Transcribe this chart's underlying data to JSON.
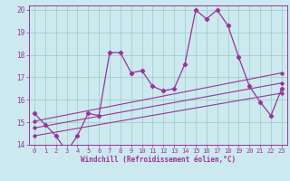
{
  "xlabel": "Windchill (Refroidissement éolien,°C)",
  "xlim": [
    -0.5,
    23.5
  ],
  "ylim": [
    14,
    20.2
  ],
  "yticks": [
    14,
    15,
    16,
    17,
    18,
    19,
    20
  ],
  "xticks": [
    0,
    1,
    2,
    3,
    4,
    5,
    6,
    7,
    8,
    9,
    10,
    11,
    12,
    13,
    14,
    15,
    16,
    17,
    18,
    19,
    20,
    21,
    22,
    23
  ],
  "bg_color": "#cce9f0",
  "line_color": "#993399",
  "grid_color": "#99ccbb",
  "main_line_x": [
    0,
    1,
    2,
    3,
    4,
    5,
    6,
    7,
    8,
    9,
    10,
    11,
    12,
    13,
    14,
    15,
    16,
    17,
    18,
    19,
    20,
    21,
    22,
    23
  ],
  "main_line_y": [
    15.4,
    14.9,
    14.4,
    13.7,
    14.4,
    15.4,
    15.3,
    18.1,
    18.1,
    17.2,
    17.3,
    16.6,
    16.4,
    16.5,
    17.6,
    20.0,
    19.6,
    20.0,
    19.3,
    17.9,
    16.6,
    15.9,
    15.3,
    16.5
  ],
  "line2_x": [
    0,
    23
  ],
  "line2_y": [
    15.05,
    17.2
  ],
  "line3_x": [
    0,
    23
  ],
  "line3_y": [
    14.75,
    16.75
  ],
  "line4_x": [
    0,
    23
  ],
  "line4_y": [
    14.4,
    16.3
  ]
}
